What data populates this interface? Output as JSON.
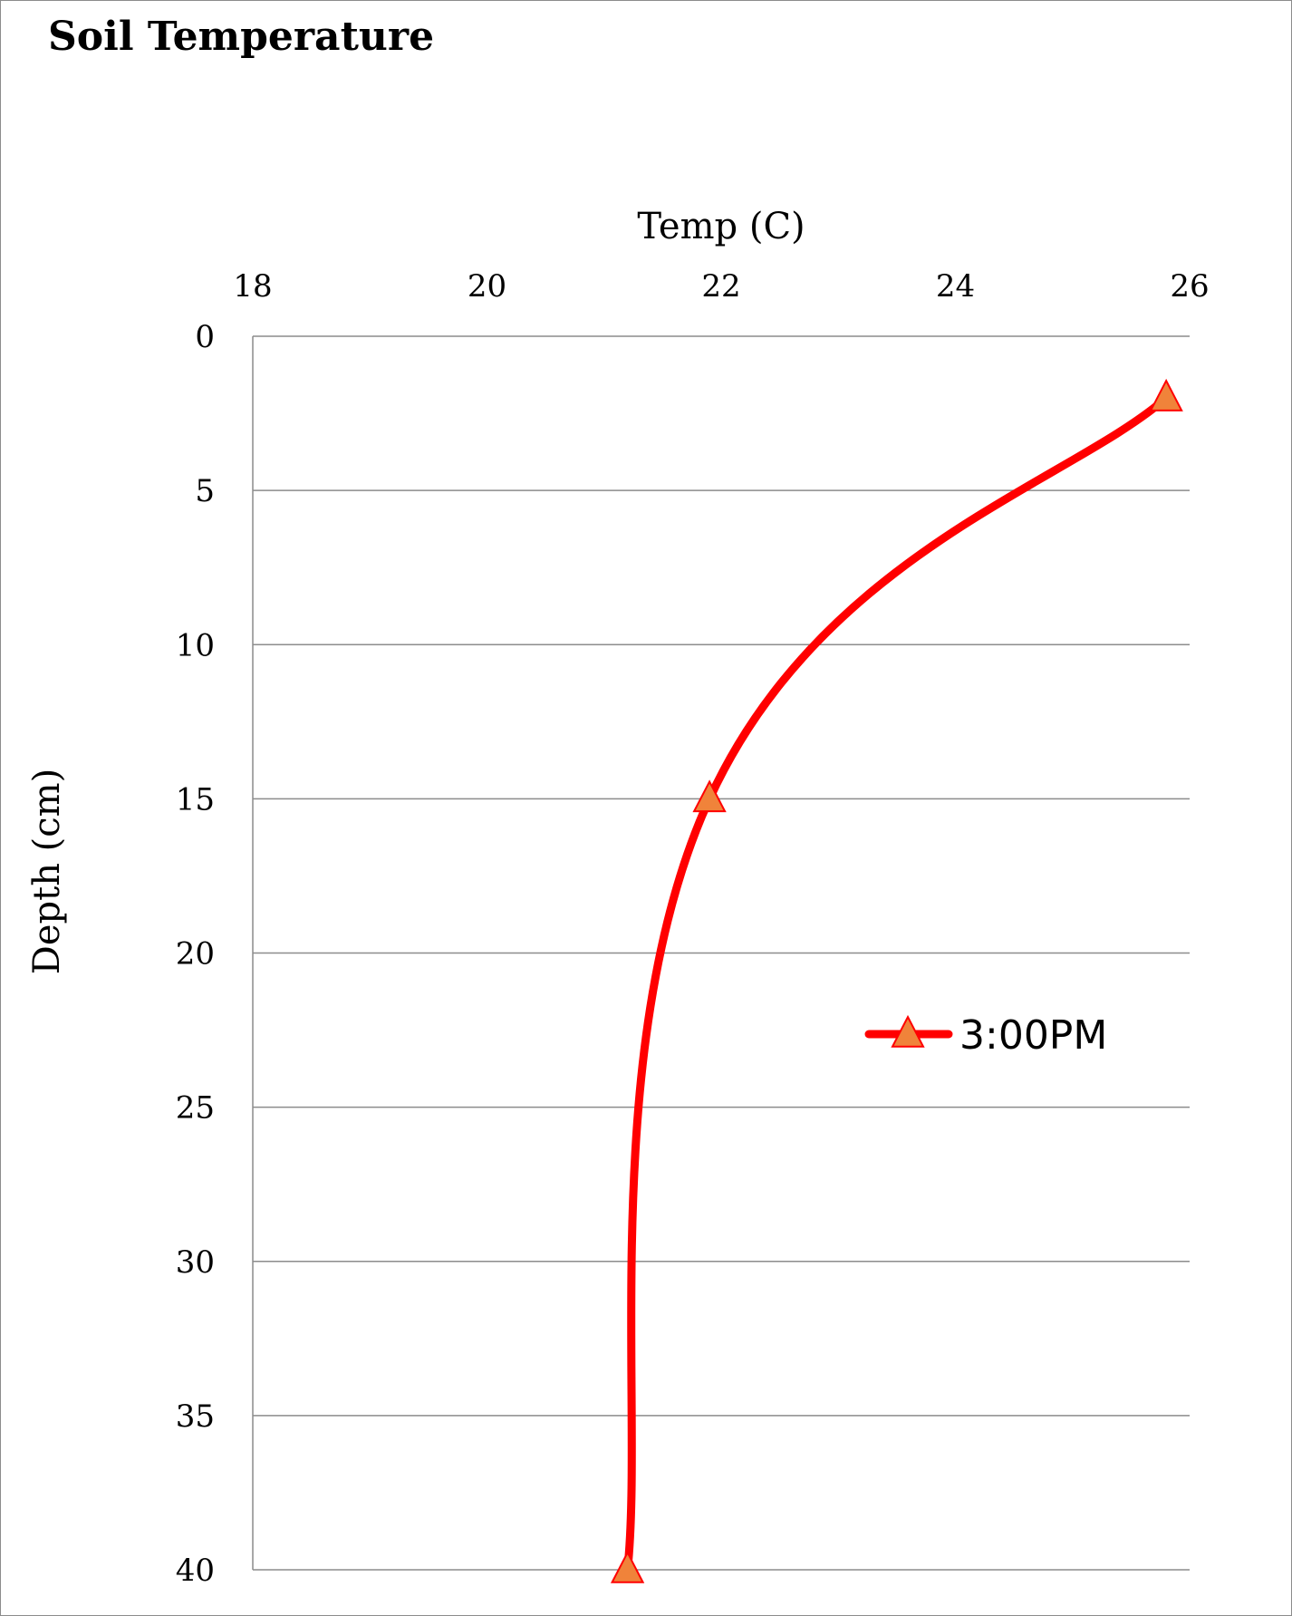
{
  "chart_data": {
    "type": "line",
    "title": "Soil Temperature",
    "xlabel": "Temp (C)",
    "ylabel": "Depth (cm)",
    "x_axis_position": "top",
    "y_axis_reversed": true,
    "xlim": [
      18,
      26
    ],
    "ylim": [
      0,
      40
    ],
    "xticks": [
      18,
      20,
      22,
      24,
      26
    ],
    "yticks": [
      0,
      5,
      10,
      15,
      20,
      25,
      30,
      35,
      40
    ],
    "grid": "horizontal",
    "smooth": true,
    "legend_position": "right",
    "series": [
      {
        "name": "3:00PM",
        "color": "#ff0000",
        "marker": "triangle",
        "marker_fill": "#f0833a",
        "points": [
          {
            "temp": 25.8,
            "depth": 2
          },
          {
            "temp": 21.9,
            "depth": 15
          },
          {
            "temp": 21.2,
            "depth": 40
          }
        ]
      }
    ]
  }
}
